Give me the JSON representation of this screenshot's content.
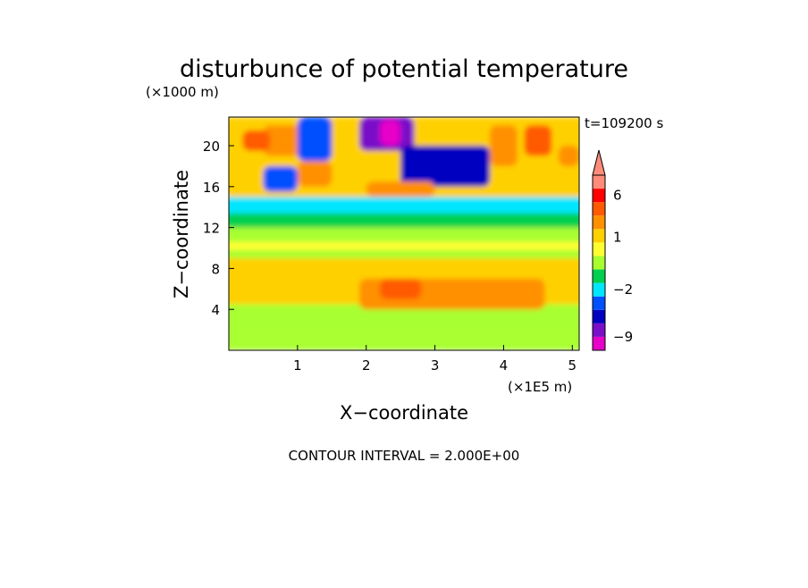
{
  "chart_data": {
    "type": "heatmap",
    "title": "disturbunce of potential temperature",
    "z_scale_label": "(×1000 m)",
    "x_scale_label": "(×1E5 m)",
    "xlabel": "X−coordinate",
    "ylabel": "Z−coordinate",
    "time_label": "t=109200 s",
    "footer": "CONTOUR INTERVAL = 2.000E+00",
    "xlim": [
      0,
      5.1
    ],
    "ylim": [
      0,
      22.8
    ],
    "x_ticks": [
      1,
      2,
      3,
      4,
      5
    ],
    "x_tick_labels": [
      "1",
      "2",
      "3",
      "4",
      "5"
    ],
    "y_ticks": [
      4,
      8,
      12,
      16,
      20
    ],
    "y_tick_labels": [
      "4",
      "8",
      "12",
      "16",
      "20"
    ],
    "colorbar_labels": [
      {
        "text": "6",
        "value": 6
      },
      {
        "text": "1",
        "value": 1
      },
      {
        "text": "−2",
        "value": -2
      },
      {
        "text": "−9",
        "value": -9
      }
    ],
    "colorbar_levels": [
      {
        "from": -13,
        "to": -9,
        "color": "#e600c8"
      },
      {
        "from": -9,
        "to": -7,
        "color": "#7a0fc8"
      },
      {
        "from": -7,
        "to": -4,
        "color": "#0000c0"
      },
      {
        "from": -4,
        "to": -2.5,
        "color": "#0050ff"
      },
      {
        "from": -2.5,
        "to": -1.5,
        "color": "#00e6ff"
      },
      {
        "from": -1.5,
        "to": -0.5,
        "color": "#00d050"
      },
      {
        "from": -0.5,
        "to": 0.3,
        "color": "#a8ff30"
      },
      {
        "from": 0.3,
        "to": 0.7,
        "color": "#ffff30"
      },
      {
        "from": 0.7,
        "to": 1.5,
        "color": "#ffd000"
      },
      {
        "from": 1.5,
        "to": 2.5,
        "color": "#ff9000"
      },
      {
        "from": 2.5,
        "to": 5,
        "color": "#ff5a00"
      },
      {
        "from": 5,
        "to": 7,
        "color": "#ff0000"
      },
      {
        "from": 7,
        "to": 14,
        "color": "#ff8c7a"
      }
    ],
    "colorbar_max_arrow_color": "#ff8c7a",
    "contour_interval": 2.0,
    "field_regions": [
      {
        "x": [
          0,
          5.1
        ],
        "z": [
          0,
          22.8
        ],
        "value": 0.5
      },
      {
        "x": [
          0,
          5.1
        ],
        "z": [
          0,
          1.5
        ],
        "value": -0.2
      },
      {
        "x": [
          0,
          5.1
        ],
        "z": [
          1.5,
          4.5
        ],
        "value": 0.2
      },
      {
        "x": [
          0,
          5.1
        ],
        "z": [
          4.5,
          9
        ],
        "value": 1.0
      },
      {
        "x": [
          0.5,
          4.8
        ],
        "z": [
          5,
          8.5
        ],
        "value": 1.3
      },
      {
        "x": [
          1.9,
          4.6
        ],
        "z": [
          4,
          7
        ],
        "value": 2.0
      },
      {
        "x": [
          2.2,
          2.8
        ],
        "z": [
          5,
          7
        ],
        "value": 2.6
      },
      {
        "x": [
          0,
          5.1
        ],
        "z": [
          9,
          12
        ],
        "value": 0.2
      },
      {
        "x": [
          0,
          5.1
        ],
        "z": [
          9.8,
          10.6
        ],
        "value": 0.4
      },
      {
        "x": [
          0,
          5.1
        ],
        "z": [
          12,
          13.4
        ],
        "value": -0.8
      },
      {
        "x": [
          0,
          5.1
        ],
        "z": [
          13.4,
          15
        ],
        "value": -2.0
      },
      {
        "x": [
          0,
          5.1
        ],
        "z": [
          15,
          22.8
        ],
        "value": 0.8
      },
      {
        "x": [
          0.5,
          1.3
        ],
        "z": [
          19,
          22
        ],
        "value": 2.0
      },
      {
        "x": [
          0.2,
          0.6
        ],
        "z": [
          19.5,
          21.5
        ],
        "value": 3.0
      },
      {
        "x": [
          1.0,
          1.5
        ],
        "z": [
          16,
          18.5
        ],
        "value": 2.0
      },
      {
        "x": [
          0.5,
          1.0
        ],
        "z": [
          15.5,
          18
        ],
        "value": -3.0
      },
      {
        "x": [
          1.0,
          1.5
        ],
        "z": [
          18.5,
          22.8
        ],
        "value": -3.5
      },
      {
        "x": [
          1.9,
          2.7
        ],
        "z": [
          19.5,
          22.8
        ],
        "value": -8.0
      },
      {
        "x": [
          2.2,
          2.5
        ],
        "z": [
          20,
          22.5
        ],
        "value": -10.0
      },
      {
        "x": [
          2.5,
          3.8
        ],
        "z": [
          16,
          20
        ],
        "value": -5.0
      },
      {
        "x": [
          3.8,
          4.2
        ],
        "z": [
          18,
          22
        ],
        "value": 2.0
      },
      {
        "x": [
          4.3,
          4.7
        ],
        "z": [
          19,
          22
        ],
        "value": 3.0
      },
      {
        "x": [
          4.8,
          5.1
        ],
        "z": [
          18,
          20
        ],
        "value": 2.0
      },
      {
        "x": [
          2.0,
          3.0
        ],
        "z": [
          15,
          16.5
        ],
        "value": 2.0
      }
    ]
  }
}
